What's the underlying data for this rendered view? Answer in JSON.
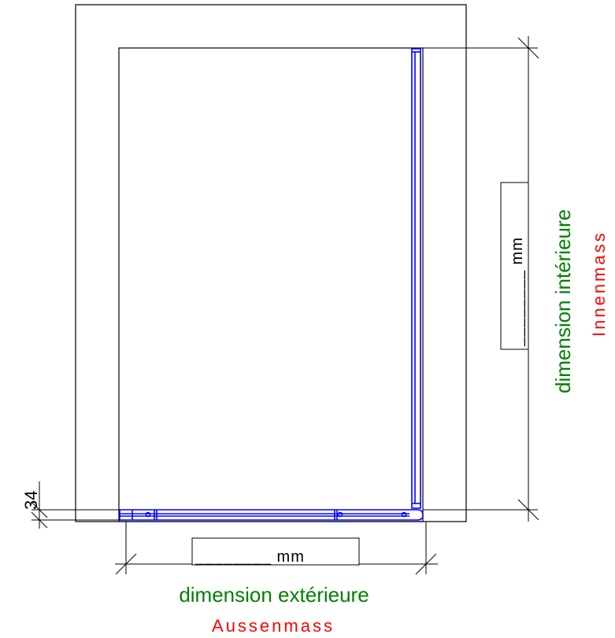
{
  "labels": {
    "exterior_fr": "dimension extérieure",
    "exterior_de": "Aussenmass",
    "interior_fr": "dimension intérieure",
    "interior_de": "Innenmass",
    "exterior_field": "________ mm",
    "interior_field": "________ mm",
    "gap_value": "34"
  },
  "colors": {
    "line": "#000000",
    "profile": "#0000ff",
    "french_text": "#008000",
    "german_text": "#ff0000"
  }
}
